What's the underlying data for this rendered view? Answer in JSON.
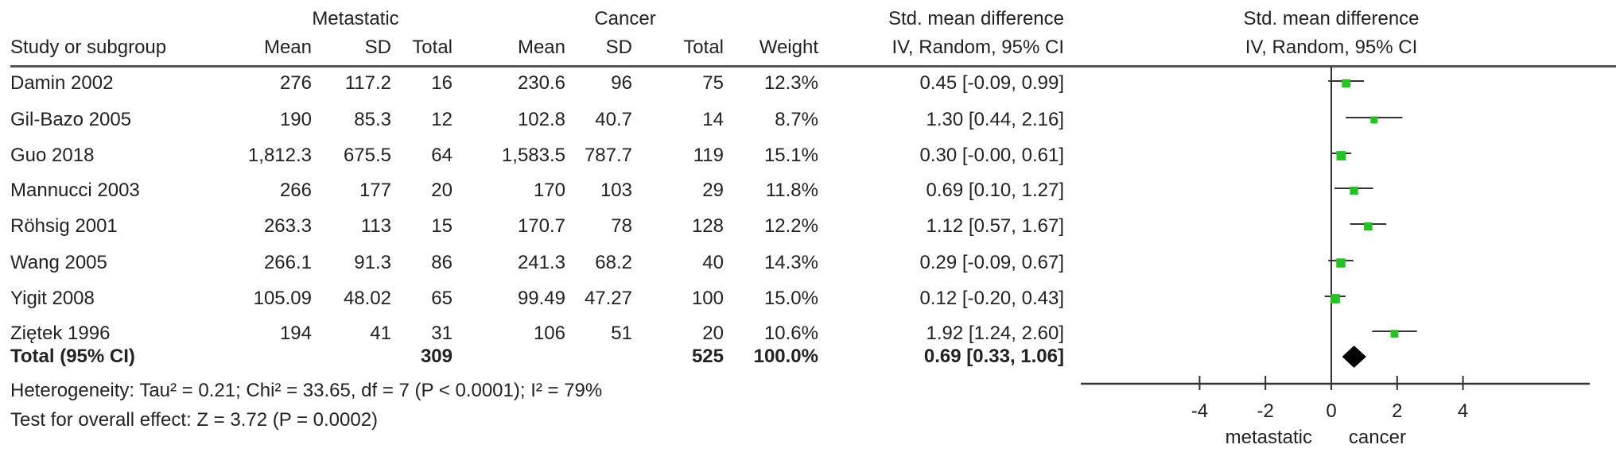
{
  "headers": {
    "group1": "Metastatic",
    "group2": "Cancer",
    "study": "Study or subgroup",
    "mean1": "Mean",
    "sd1": "SD",
    "total1": "Total",
    "mean2": "Mean",
    "sd2": "SD",
    "total2": "Total",
    "weight": "Weight",
    "effect_title": "Std. mean difference",
    "effect_method": "IV, Random, 95% CI",
    "plot_title": "Std. mean difference",
    "plot_method": "IV, Random, 95% CI"
  },
  "studies": [
    {
      "name": "Damin 2002",
      "mean1": "276",
      "sd1": "117.2",
      "total1": "16",
      "mean2": "230.6",
      "sd2": "96",
      "total2": "75",
      "weight": "12.3%",
      "ci": "0.45 [-0.09, 0.99]"
    },
    {
      "name": "Gil-Bazo 2005",
      "mean1": "190",
      "sd1": "85.3",
      "total1": "12",
      "mean2": "102.8",
      "sd2": "40.7",
      "total2": "14",
      "weight": "8.7%",
      "ci": "1.30 [0.44, 2.16]"
    },
    {
      "name": "Guo 2018",
      "mean1": "1,812.3",
      "sd1": "675.5",
      "total1": "64",
      "mean2": "1,583.5",
      "sd2": "787.7",
      "total2": "119",
      "weight": "15.1%",
      "ci": "0.30 [-0.00, 0.61]"
    },
    {
      "name": "Mannucci 2003",
      "mean1": "266",
      "sd1": "177",
      "total1": "20",
      "mean2": "170",
      "sd2": "103",
      "total2": "29",
      "weight": "11.8%",
      "ci": "0.69 [0.10, 1.27]"
    },
    {
      "name": "Röhsig 2001",
      "mean1": "263.3",
      "sd1": "113",
      "total1": "15",
      "mean2": "170.7",
      "sd2": "78",
      "total2": "128",
      "weight": "12.2%",
      "ci": "1.12 [0.57, 1.67]"
    },
    {
      "name": "Wang  2005",
      "mean1": "266.1",
      "sd1": "91.3",
      "total1": "86",
      "mean2": "241.3",
      "sd2": "68.2",
      "total2": "40",
      "weight": "14.3%",
      "ci": "0.29 [-0.09, 0.67]"
    },
    {
      "name": "Yigit 2008",
      "mean1": "105.09",
      "sd1": "48.02",
      "total1": "65",
      "mean2": "99.49",
      "sd2": "47.27",
      "total2": "100",
      "weight": "15.0%",
      "ci": "0.12 [-0.20, 0.43]"
    },
    {
      "name": "Ziętek  1996",
      "mean1": "194",
      "sd1": "41",
      "total1": "31",
      "mean2": "106",
      "sd2": "51",
      "total2": "20",
      "weight": "10.6%",
      "ci": "1.92 [1.24, 2.60]"
    }
  ],
  "total": {
    "name": "Total (95% CI)",
    "total1": "309",
    "total2": "525",
    "weight": "100.0%",
    "ci": "0.69 [0.33, 1.06]"
  },
  "heterogeneity": "Heterogeneity: Tau² = 0.21; Chi² = 33.65, df = 7 (P < 0.0001); I² = 79%",
  "overall_effect": "Test for overall effect: Z = 3.72 (P = 0.0002)",
  "chart_data": {
    "type": "forest",
    "title": "Std. mean difference",
    "subtitle": "IV, Random, 95% CI",
    "xlim": [
      -4,
      4
    ],
    "xticks": [
      "-4",
      "-2",
      "0",
      "2",
      "4"
    ],
    "xlabel_left": "metastatic",
    "xlabel_right": "cancer",
    "marker_color": "#22c322",
    "summary_color": "#000000",
    "points": [
      {
        "study": "Damin 2002",
        "estimate": 0.45,
        "lower": -0.09,
        "upper": 0.99,
        "weight": 12.3
      },
      {
        "study": "Gil-Bazo 2005",
        "estimate": 1.3,
        "lower": 0.44,
        "upper": 2.16,
        "weight": 8.7
      },
      {
        "study": "Guo 2018",
        "estimate": 0.3,
        "lower": 0.0,
        "upper": 0.61,
        "weight": 15.1
      },
      {
        "study": "Mannucci 2003",
        "estimate": 0.69,
        "lower": 0.1,
        "upper": 1.27,
        "weight": 11.8
      },
      {
        "study": "Röhsig 2001",
        "estimate": 1.12,
        "lower": 0.57,
        "upper": 1.67,
        "weight": 12.2
      },
      {
        "study": "Wang  2005",
        "estimate": 0.29,
        "lower": -0.09,
        "upper": 0.67,
        "weight": 14.3
      },
      {
        "study": "Yigit 2008",
        "estimate": 0.12,
        "lower": -0.2,
        "upper": 0.43,
        "weight": 15.0
      },
      {
        "study": "Ziętek  1996",
        "estimate": 1.92,
        "lower": 1.24,
        "upper": 2.6,
        "weight": 10.6
      }
    ],
    "summary": {
      "estimate": 0.69,
      "lower": 0.33,
      "upper": 1.06
    }
  }
}
